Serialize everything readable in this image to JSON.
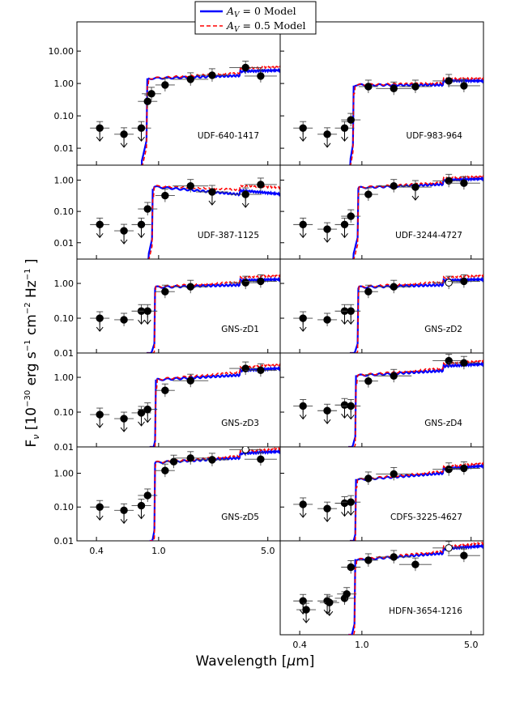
{
  "chart_data": {
    "type": "line",
    "xlabel": "Wavelength [μm]",
    "ylabel": "F_ν [10^-30 erg s^-1 cm^-2 Hz^-1]",
    "xscale": "log",
    "yscale": "log",
    "xlim": [
      0.3,
      6.0
    ],
    "xticks": [
      "0.4",
      "1.0",
      "5.0"
    ],
    "legend": {
      "position": "top-center",
      "entries": [
        {
          "label": "AV = 0 Model",
          "style": "solid",
          "color": "#0000ff"
        },
        {
          "label": "AV = 0.5 Model",
          "style": "dashed",
          "color": "#ff0000"
        }
      ]
    },
    "panels": [
      {
        "name": "UDF-640-1417",
        "ylim": [
          0.003,
          80
        ],
        "yticks": [
          "0.01",
          "0.10",
          "1.00",
          "10.00"
        ],
        "level": 1.5,
        "rise_wl": 0.86,
        "slope": 0.15,
        "red_extra": 0.15,
        "dropout_wl": 0.78,
        "points": [
          {
            "wl": 0.42,
            "f": 0.042,
            "up": true
          },
          {
            "wl": 0.6,
            "f": 0.027,
            "up": true
          },
          {
            "wl": 0.775,
            "f": 0.042,
            "up": true
          },
          {
            "wl": 0.85,
            "f": 0.28,
            "up": false
          },
          {
            "wl": 0.9,
            "f": 0.48,
            "up": false
          },
          {
            "wl": 1.1,
            "f": 0.9,
            "up": false
          },
          {
            "wl": 1.6,
            "f": 1.35,
            "up": false
          },
          {
            "wl": 2.2,
            "f": 1.8,
            "up": false
          },
          {
            "wl": 3.6,
            "f": 3.1,
            "up": false
          },
          {
            "wl": 4.5,
            "f": 1.7,
            "up": false
          }
        ]
      },
      {
        "name": "UDF-983-964",
        "ylim": [
          0.003,
          80
        ],
        "yticks": [
          "0.01",
          "0.10",
          "1.00",
          "10.00"
        ],
        "level": 0.9,
        "rise_wl": 0.9,
        "slope": 0.0,
        "red_extra": 0.1,
        "dropout_wl": 0.84,
        "points": [
          {
            "wl": 0.42,
            "f": 0.042,
            "up": true
          },
          {
            "wl": 0.6,
            "f": 0.027,
            "up": true
          },
          {
            "wl": 0.775,
            "f": 0.042,
            "up": true
          },
          {
            "wl": 0.85,
            "f": 0.075,
            "up": false
          },
          {
            "wl": 1.1,
            "f": 0.8,
            "up": false
          },
          {
            "wl": 1.6,
            "f": 0.7,
            "up": false
          },
          {
            "wl": 2.2,
            "f": 0.8,
            "up": false
          },
          {
            "wl": 3.6,
            "f": 1.2,
            "up": false
          },
          {
            "wl": 4.5,
            "f": 0.85,
            "up": false
          }
        ]
      },
      {
        "name": "UDF-387-1125",
        "ylim": [
          0.003,
          3
        ],
        "yticks": [
          "0.01",
          "0.10",
          "1.00"
        ],
        "level": 0.55,
        "rise_wl": 0.93,
        "slope": -0.45,
        "red_extra": 0.3,
        "dropout_wl": 0.86,
        "points": [
          {
            "wl": 0.42,
            "f": 0.038,
            "up": true
          },
          {
            "wl": 0.6,
            "f": 0.024,
            "up": true
          },
          {
            "wl": 0.775,
            "f": 0.038,
            "up": true
          },
          {
            "wl": 0.85,
            "f": 0.12,
            "up": false
          },
          {
            "wl": 1.1,
            "f": 0.32,
            "up": false
          },
          {
            "wl": 1.6,
            "f": 0.65,
            "up": false
          },
          {
            "wl": 2.2,
            "f": 0.42,
            "up": true
          },
          {
            "wl": 3.6,
            "f": 0.35,
            "up": true
          },
          {
            "wl": 4.5,
            "f": 0.72,
            "up": false
          }
        ]
      },
      {
        "name": "UDF-3244-4727",
        "ylim": [
          0.003,
          3
        ],
        "yticks": [
          "0.01",
          "0.10",
          "1.00"
        ],
        "level": 0.6,
        "rise_wl": 0.96,
        "slope": 0.2,
        "red_extra": 0.1,
        "dropout_wl": 0.88,
        "points": [
          {
            "wl": 0.42,
            "f": 0.038,
            "up": true
          },
          {
            "wl": 0.6,
            "f": 0.027,
            "up": true
          },
          {
            "wl": 0.775,
            "f": 0.038,
            "up": true
          },
          {
            "wl": 0.85,
            "f": 0.07,
            "up": false
          },
          {
            "wl": 1.1,
            "f": 0.35,
            "up": false
          },
          {
            "wl": 1.6,
            "f": 0.65,
            "up": false
          },
          {
            "wl": 2.2,
            "f": 0.6,
            "up": true
          },
          {
            "wl": 3.6,
            "f": 0.95,
            "up": false
          },
          {
            "wl": 4.5,
            "f": 0.8,
            "up": false
          }
        ]
      },
      {
        "name": "GNS-zD1",
        "ylim": [
          0.01,
          5
        ],
        "yticks": [
          "0.01",
          "0.10",
          "1.00"
        ],
        "level": 0.8,
        "rise_wl": 0.96,
        "slope": 0.12,
        "red_extra": 0.15,
        "dropout_wl": 0.84,
        "points": [
          {
            "wl": 0.42,
            "f": 0.1,
            "up": true
          },
          {
            "wl": 0.6,
            "f": 0.09,
            "up": false
          },
          {
            "wl": 0.775,
            "f": 0.16,
            "up": true
          },
          {
            "wl": 0.85,
            "f": 0.16,
            "up": true
          },
          {
            "wl": 1.1,
            "f": 0.58,
            "up": false
          },
          {
            "wl": 1.6,
            "f": 0.8,
            "up": false
          },
          {
            "wl": 3.6,
            "f": 1.05,
            "up": false
          },
          {
            "wl": 4.5,
            "f": 1.15,
            "up": false
          }
        ]
      },
      {
        "name": "GNS-zD2",
        "ylim": [
          0.01,
          5
        ],
        "yticks": [
          "0.01",
          "0.10",
          "1.00"
        ],
        "level": 0.8,
        "rise_wl": 0.96,
        "slope": 0.12,
        "red_extra": 0.15,
        "dropout_wl": 0.84,
        "points": [
          {
            "wl": 0.42,
            "f": 0.1,
            "up": true
          },
          {
            "wl": 0.6,
            "f": 0.09,
            "up": false
          },
          {
            "wl": 0.775,
            "f": 0.16,
            "up": true
          },
          {
            "wl": 0.85,
            "f": 0.16,
            "up": true
          },
          {
            "wl": 1.1,
            "f": 0.58,
            "up": false
          },
          {
            "wl": 1.6,
            "f": 0.8,
            "up": false
          },
          {
            "wl": 3.6,
            "f": 1.05,
            "up": false,
            "open": true
          },
          {
            "wl": 4.5,
            "f": 1.15,
            "up": false
          }
        ]
      },
      {
        "name": "GNS-zD3",
        "ylim": [
          0.01,
          5
        ],
        "yticks": [
          "0.01",
          "0.10",
          "1.00"
        ],
        "level": 0.9,
        "rise_wl": 0.98,
        "slope": 0.25,
        "red_extra": 0.15,
        "dropout_wl": 0.88,
        "points": [
          {
            "wl": 0.42,
            "f": 0.085,
            "up": true
          },
          {
            "wl": 0.6,
            "f": 0.065,
            "up": true
          },
          {
            "wl": 0.775,
            "f": 0.095,
            "up": true
          },
          {
            "wl": 0.85,
            "f": 0.12,
            "up": true
          },
          {
            "wl": 1.1,
            "f": 0.42,
            "up": false
          },
          {
            "wl": 1.6,
            "f": 0.8,
            "up": false
          },
          {
            "wl": 3.6,
            "f": 1.8,
            "up": false
          },
          {
            "wl": 4.5,
            "f": 1.6,
            "up": false
          }
        ]
      },
      {
        "name": "GNS-zD4",
        "ylim": [
          0.01,
          5
        ],
        "yticks": [
          "0.01",
          "0.10",
          "1.00"
        ],
        "level": 1.2,
        "rise_wl": 0.93,
        "slope": 0.25,
        "red_extra": 0.12,
        "dropout_wl": 0.82,
        "points": [
          {
            "wl": 0.42,
            "f": 0.15,
            "up": true
          },
          {
            "wl": 0.6,
            "f": 0.11,
            "up": true
          },
          {
            "wl": 0.775,
            "f": 0.16,
            "up": true
          },
          {
            "wl": 0.85,
            "f": 0.15,
            "up": true
          },
          {
            "wl": 1.1,
            "f": 0.78,
            "up": false
          },
          {
            "wl": 1.6,
            "f": 1.1,
            "up": false
          },
          {
            "wl": 3.6,
            "f": 3.0,
            "up": false
          },
          {
            "wl": 4.5,
            "f": 2.6,
            "up": false
          }
        ]
      },
      {
        "name": "GNS-zD5",
        "ylim": [
          0.01,
          6
        ],
        "yticks": [
          "0.01",
          "0.10",
          "1.00"
        ],
        "level": 2.2,
        "rise_wl": 0.96,
        "slope": 0.25,
        "red_extra": 0.1,
        "dropout_wl": 0.88,
        "points": [
          {
            "wl": 0.42,
            "f": 0.1,
            "up": true
          },
          {
            "wl": 0.6,
            "f": 0.08,
            "up": true
          },
          {
            "wl": 0.775,
            "f": 0.11,
            "up": true
          },
          {
            "wl": 0.85,
            "f": 0.22,
            "up": false
          },
          {
            "wl": 1.1,
            "f": 1.2,
            "up": false
          },
          {
            "wl": 1.25,
            "f": 2.2,
            "up": false
          },
          {
            "wl": 1.6,
            "f": 2.8,
            "up": false
          },
          {
            "wl": 2.2,
            "f": 2.5,
            "up": false
          },
          {
            "wl": 3.6,
            "f": 5.0,
            "up": false,
            "open": true
          },
          {
            "wl": 4.5,
            "f": 2.6,
            "up": false
          }
        ]
      },
      {
        "name": "CDFS-3225-4627",
        "ylim": [
          0.01,
          6
        ],
        "yticks": [
          "0.01",
          "0.10",
          "1.00"
        ],
        "level": 0.7,
        "rise_wl": 0.93,
        "slope": 0.35,
        "red_extra": 0.1,
        "dropout_wl": 0.84,
        "points": [
          {
            "wl": 0.42,
            "f": 0.12,
            "up": true
          },
          {
            "wl": 0.6,
            "f": 0.09,
            "up": true
          },
          {
            "wl": 0.775,
            "f": 0.13,
            "up": true
          },
          {
            "wl": 0.85,
            "f": 0.14,
            "up": true
          },
          {
            "wl": 1.1,
            "f": 0.7,
            "up": false
          },
          {
            "wl": 1.6,
            "f": 0.95,
            "up": false
          },
          {
            "wl": 3.6,
            "f": 1.3,
            "up": false
          },
          {
            "wl": 4.5,
            "f": 1.4,
            "up": false
          }
        ]
      },
      {
        "name": "HDFN-3654-1216",
        "ylim": [
          0.01,
          6
        ],
        "yticks": [],
        "level": 1.8,
        "rise_wl": 0.92,
        "slope": 0.35,
        "red_extra": 0.1,
        "dropout_wl": 0.82,
        "points": [
          {
            "wl": 0.42,
            "f": 0.1,
            "up": true
          },
          {
            "wl": 0.44,
            "f": 0.055,
            "up": true
          },
          {
            "wl": 0.6,
            "f": 0.1,
            "up": true
          },
          {
            "wl": 0.62,
            "f": 0.09,
            "up": true
          },
          {
            "wl": 0.775,
            "f": 0.12,
            "up": false
          },
          {
            "wl": 0.8,
            "f": 0.16,
            "up": false
          },
          {
            "wl": 0.85,
            "f": 1.0,
            "up": false
          },
          {
            "wl": 1.1,
            "f": 1.6,
            "up": false
          },
          {
            "wl": 1.6,
            "f": 2.0,
            "up": false
          },
          {
            "wl": 2.2,
            "f": 1.2,
            "up": false
          },
          {
            "wl": 3.6,
            "f": 3.7,
            "up": false,
            "open": true
          },
          {
            "wl": 4.5,
            "f": 2.2,
            "up": false
          }
        ]
      }
    ]
  },
  "legend": {
    "blue": {
      "sym": "A",
      "sub": "V",
      "rest": " = 0 Model"
    },
    "red": {
      "sym": "A",
      "sub": "V",
      "rest": " = 0.5 Model"
    }
  },
  "axes": {
    "xlabel_main": "Wavelength [",
    "xlabel_mu": "μ",
    "xlabel_unit": "m]",
    "ylabel_F": "F",
    "ylabel_nu": "ν",
    "ylabel_open": "  [10",
    "ylabel_exp1": "−30",
    "ylabel_erg": " erg s",
    "ylabel_exp2": "−1",
    "ylabel_cm": " cm",
    "ylabel_exp3": "−2",
    "ylabel_hz": " Hz",
    "ylabel_exp4": "−1",
    "ylabel_close": " ]"
  }
}
